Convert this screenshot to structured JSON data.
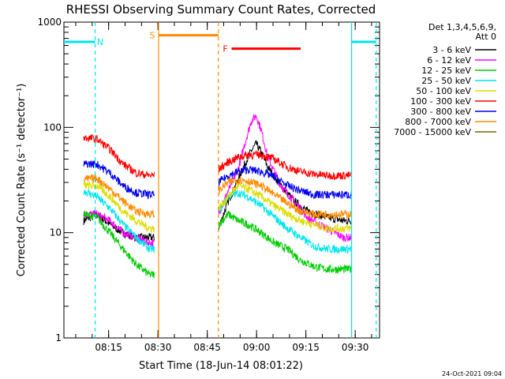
{
  "chart_data": {
    "type": "line",
    "title": "RHESSI Observing Summary Count Rates, Corrected",
    "ylabel": "Corrected Count Rate (s⁻¹ detector⁻¹)",
    "xlabel": "Start Time (18-Jun-14 08:01:22)",
    "yscale": "log",
    "ylim": [
      1,
      1000
    ],
    "xlim_minutes": [
      0,
      96
    ],
    "y_ticks": [
      {
        "v": 1,
        "label": "1"
      },
      {
        "v": 10,
        "label": "10"
      },
      {
        "v": 100,
        "label": "100"
      },
      {
        "v": 1000,
        "label": "1000"
      }
    ],
    "x_ticks": [
      {
        "t": 13.6,
        "label": "08:15"
      },
      {
        "t": 28.6,
        "label": "08:30"
      },
      {
        "t": 43.6,
        "label": "08:45"
      },
      {
        "t": 58.6,
        "label": "09:00"
      },
      {
        "t": 73.6,
        "label": "09:15"
      },
      {
        "t": 88.6,
        "label": "09:30"
      }
    ],
    "legend_header": [
      "Det 1,3,4,5,6,9,",
      "Att 0"
    ],
    "series": [
      {
        "name": "3 - 6 keV",
        "color": "#000000",
        "before": [
          [
            6,
            13
          ],
          [
            10,
            15
          ],
          [
            14,
            12
          ],
          [
            18,
            10
          ],
          [
            22,
            9
          ],
          [
            26,
            9
          ],
          [
            27.5,
            9
          ]
        ],
        "after": [
          [
            47,
            11
          ],
          [
            50,
            20
          ],
          [
            53,
            32
          ],
          [
            55,
            45
          ],
          [
            57,
            60
          ],
          [
            58.5,
            70
          ],
          [
            60,
            58
          ],
          [
            62,
            42
          ],
          [
            66,
            28
          ],
          [
            70,
            20
          ],
          [
            74,
            16
          ],
          [
            80,
            14
          ],
          [
            85,
            13
          ],
          [
            87.5,
            13
          ]
        ]
      },
      {
        "name": "6 - 12 keV",
        "color": "#ff00ff",
        "before": [
          [
            6,
            15
          ],
          [
            10,
            15
          ],
          [
            14,
            13
          ],
          [
            18,
            10
          ],
          [
            22,
            9
          ],
          [
            26,
            8
          ],
          [
            27.5,
            8
          ]
        ],
        "after": [
          [
            47,
            15
          ],
          [
            50,
            25
          ],
          [
            53,
            40
          ],
          [
            55,
            70
          ],
          [
            57,
            115
          ],
          [
            58.5,
            130
          ],
          [
            60,
            95
          ],
          [
            62,
            52
          ],
          [
            66,
            28
          ],
          [
            70,
            20
          ],
          [
            74,
            14
          ],
          [
            80,
            11
          ],
          [
            85,
            9
          ],
          [
            87.5,
            9
          ]
        ]
      },
      {
        "name": "12 - 25 keV",
        "color": "#00cc00",
        "before": [
          [
            6,
            15
          ],
          [
            10,
            14
          ],
          [
            14,
            10
          ],
          [
            18,
            7
          ],
          [
            22,
            5
          ],
          [
            26,
            4
          ],
          [
            27.5,
            4
          ]
        ],
        "after": [
          [
            47,
            12
          ],
          [
            50,
            15
          ],
          [
            53,
            13
          ],
          [
            56,
            12
          ],
          [
            60,
            10
          ],
          [
            64,
            8
          ],
          [
            68,
            7
          ],
          [
            72,
            5.5
          ],
          [
            76,
            4.8
          ],
          [
            80,
            4.5
          ],
          [
            85,
            4.5
          ],
          [
            87.5,
            4.5
          ]
        ]
      },
      {
        "name": "25 - 50 keV",
        "color": "#00e5ee",
        "before": [
          [
            6,
            25
          ],
          [
            10,
            22
          ],
          [
            14,
            17
          ],
          [
            18,
            12
          ],
          [
            22,
            9
          ],
          [
            26,
            7
          ],
          [
            27.5,
            7
          ]
        ],
        "after": [
          [
            47,
            16
          ],
          [
            50,
            22
          ],
          [
            53,
            24
          ],
          [
            56,
            22
          ],
          [
            60,
            18
          ],
          [
            64,
            14
          ],
          [
            68,
            11
          ],
          [
            72,
            9
          ],
          [
            76,
            7.5
          ],
          [
            80,
            7
          ],
          [
            85,
            7
          ],
          [
            87.5,
            7
          ]
        ]
      },
      {
        "name": "50 - 100 keV",
        "color": "#dddd00",
        "before": [
          [
            6,
            28
          ],
          [
            10,
            28
          ],
          [
            14,
            22
          ],
          [
            18,
            16
          ],
          [
            22,
            13
          ],
          [
            26,
            11
          ],
          [
            27.5,
            11
          ]
        ],
        "after": [
          [
            47,
            17
          ],
          [
            50,
            22
          ],
          [
            53,
            28
          ],
          [
            56,
            26
          ],
          [
            60,
            22
          ],
          [
            64,
            18
          ],
          [
            68,
            15
          ],
          [
            72,
            13
          ],
          [
            76,
            12
          ],
          [
            80,
            11
          ],
          [
            85,
            11
          ],
          [
            87.5,
            11
          ]
        ]
      },
      {
        "name": "100 - 300 keV",
        "color": "#ff0000",
        "before": [
          [
            6,
            80
          ],
          [
            10,
            78
          ],
          [
            14,
            62
          ],
          [
            18,
            45
          ],
          [
            22,
            37
          ],
          [
            26,
            35
          ],
          [
            27.5,
            35
          ]
        ],
        "after": [
          [
            47,
            40
          ],
          [
            50,
            47
          ],
          [
            53,
            52
          ],
          [
            56,
            55
          ],
          [
            60,
            55
          ],
          [
            64,
            50
          ],
          [
            68,
            42
          ],
          [
            72,
            38
          ],
          [
            76,
            36
          ],
          [
            80,
            35
          ],
          [
            85,
            35
          ],
          [
            87.5,
            35
          ]
        ]
      },
      {
        "name": "300 - 800 keV",
        "color": "#0000ee",
        "before": [
          [
            6,
            45
          ],
          [
            10,
            45
          ],
          [
            14,
            37
          ],
          [
            18,
            28
          ],
          [
            22,
            24
          ],
          [
            26,
            23
          ],
          [
            27.5,
            23
          ]
        ],
        "after": [
          [
            47,
            30
          ],
          [
            50,
            35
          ],
          [
            53,
            38
          ],
          [
            56,
            40
          ],
          [
            60,
            38
          ],
          [
            64,
            34
          ],
          [
            68,
            28
          ],
          [
            72,
            25
          ],
          [
            76,
            23
          ],
          [
            80,
            23
          ],
          [
            85,
            23
          ],
          [
            87.5,
            23
          ]
        ]
      },
      {
        "name": "800 - 7000 keV",
        "color": "#ff8c00",
        "before": [
          [
            6,
            32
          ],
          [
            10,
            33
          ],
          [
            14,
            26
          ],
          [
            18,
            20
          ],
          [
            22,
            16
          ],
          [
            26,
            15
          ],
          [
            27.5,
            15
          ]
        ],
        "after": [
          [
            47,
            25
          ],
          [
            50,
            30
          ],
          [
            53,
            32
          ],
          [
            56,
            31
          ],
          [
            60,
            28
          ],
          [
            64,
            23
          ],
          [
            68,
            19
          ],
          [
            72,
            16
          ],
          [
            76,
            15
          ],
          [
            80,
            15
          ],
          [
            85,
            15
          ],
          [
            87.5,
            15
          ]
        ]
      },
      {
        "name": "7000 - 15000 keV",
        "color": "#6b6b00",
        "before": [],
        "after": []
      }
    ],
    "annotations": [
      {
        "label": "N",
        "color": "#00e5ee",
        "bar": [
          0,
          9.5
        ],
        "y": 650
      },
      {
        "label": "S",
        "color": "#ff8c00",
        "bar": [
          28.8,
          47
        ],
        "y": 750
      },
      {
        "label": "F",
        "color": "#ff0000",
        "bar": [
          51,
          72
        ],
        "y": 560
      }
    ],
    "vlines": [
      {
        "t": 9.5,
        "color": "#00e5ee",
        "style": "dashed"
      },
      {
        "t": 28.8,
        "color": "#ff8c00",
        "style": "solid"
      },
      {
        "t": 47,
        "color": "#ff8c00",
        "style": "dashed"
      },
      {
        "t": 87.5,
        "color": "#00e5ee",
        "style": "solid"
      },
      {
        "t": 95,
        "color": "#00e5ee",
        "style": "dashed"
      }
    ]
  },
  "footer": {
    "timestamp": "24-Oct-2021 09:04"
  }
}
